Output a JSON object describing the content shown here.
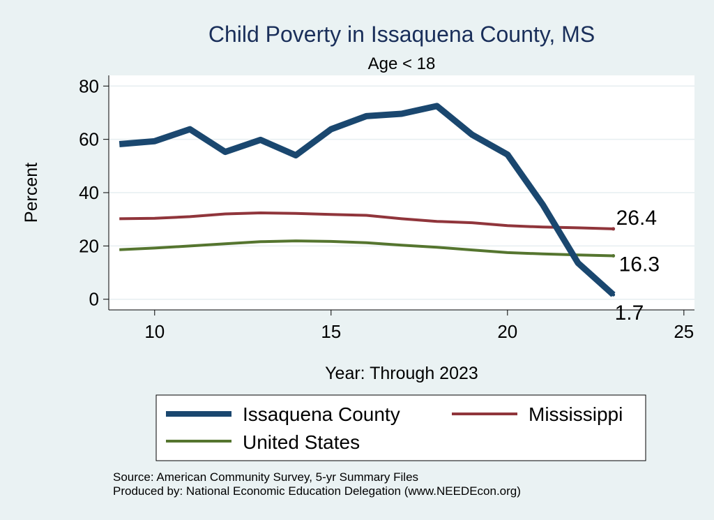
{
  "colors": {
    "background": "#eaf2f3",
    "plot_background": "#ffffff",
    "title": "#1a2f5a",
    "issaquena": "#1a476f",
    "mississippi": "#90353b",
    "united_states": "#55752f",
    "grid": "#e6eef0"
  },
  "chart_data": {
    "type": "line",
    "title": "Child Poverty in Issaquena County, MS",
    "subtitle": "Age < 18",
    "xlabel": "Year: Through 2023",
    "ylabel": "Percent",
    "xlim": [
      8.7,
      25.3
    ],
    "ylim": [
      -4,
      84
    ],
    "x_ticks": [
      10,
      15,
      20,
      25
    ],
    "y_ticks": [
      0,
      20,
      40,
      60,
      80
    ],
    "series": [
      {
        "name": "Issaquena County",
        "key": "issaquena",
        "x": [
          9,
          10,
          11,
          12,
          13,
          14,
          15,
          16,
          17,
          18,
          19,
          20,
          21,
          22,
          23
        ],
        "values": [
          58.2,
          59.3,
          63.8,
          55.3,
          59.8,
          54.0,
          63.8,
          68.7,
          69.6,
          72.5,
          61.7,
          54.3,
          35.5,
          13.6,
          1.7
        ],
        "end_label": "1.7"
      },
      {
        "name": "Mississippi",
        "key": "mississippi",
        "x": [
          9,
          10,
          11,
          12,
          13,
          14,
          15,
          16,
          17,
          18,
          19,
          20,
          21,
          22,
          23
        ],
        "values": [
          30.2,
          30.4,
          31.0,
          32.0,
          32.4,
          32.2,
          31.8,
          31.5,
          30.2,
          29.2,
          28.7,
          27.6,
          27.1,
          26.8,
          26.4
        ],
        "end_label": "26.4"
      },
      {
        "name": "United States",
        "key": "united_states",
        "x": [
          9,
          10,
          11,
          12,
          13,
          14,
          15,
          16,
          17,
          18,
          19,
          20,
          21,
          22,
          23
        ],
        "values": [
          18.6,
          19.2,
          20.0,
          20.8,
          21.6,
          21.9,
          21.7,
          21.2,
          20.3,
          19.5,
          18.5,
          17.5,
          17.0,
          16.6,
          16.3
        ],
        "end_label": "16.3"
      }
    ],
    "legend": {
      "position": "bottom",
      "items": [
        "Issaquena County",
        "Mississippi",
        "United States"
      ]
    }
  },
  "footer": {
    "source": "Source: American Community Survey, 5-yr Summary Files",
    "produced_by": "Produced by: National Economic Education Delegation (www.NEEDEcon.org)"
  }
}
